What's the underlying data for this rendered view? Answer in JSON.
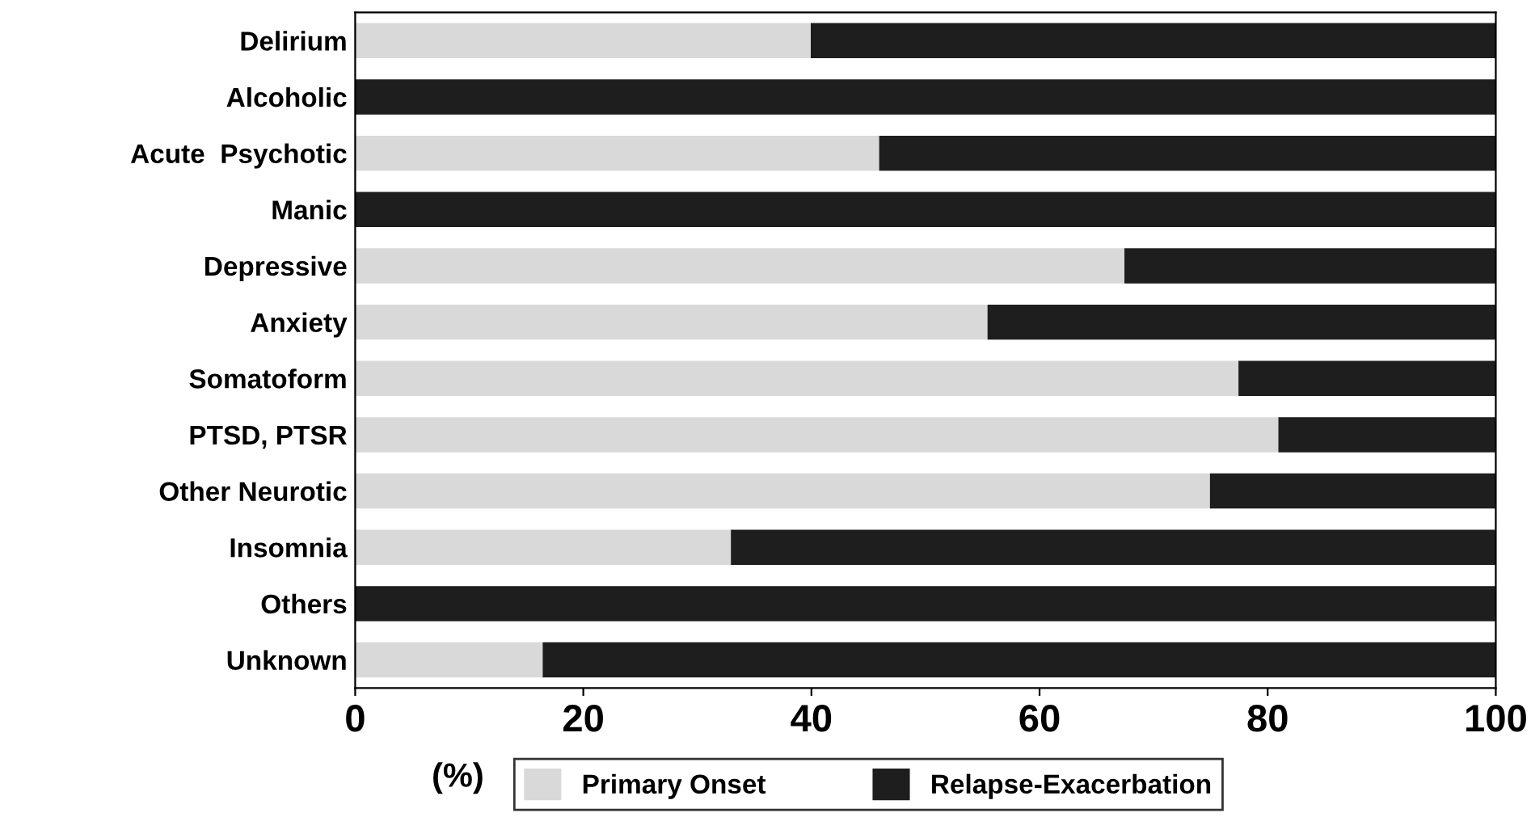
{
  "chart_data": {
    "type": "bar",
    "orientation": "horizontal",
    "stacked": true,
    "categories": [
      "Delirium",
      "Alcoholic",
      "Acute  Psychotic",
      "Manic",
      "Depressive",
      "Anxiety",
      "Somatoform",
      "PTSD, PTSR",
      "Other Neurotic",
      "Insomnia",
      "Others",
      "Unknown"
    ],
    "series": [
      {
        "name": "Primary Onset",
        "color": "#d9d9d9",
        "values": [
          40,
          0,
          46,
          0,
          67.5,
          55.5,
          77.5,
          81,
          75,
          33,
          0,
          16.5
        ]
      },
      {
        "name": "Relapse-Exacerbation",
        "color": "#1e1e1e",
        "values": [
          60,
          100,
          54,
          100,
          32.5,
          44.5,
          22.5,
          19,
          25,
          67,
          100,
          83.5
        ]
      }
    ],
    "xlabel": "(%)",
    "xlim": [
      0,
      100
    ],
    "xticks": [
      0,
      20,
      40,
      60,
      80,
      100
    ],
    "grid": false,
    "legend": "bottom"
  }
}
